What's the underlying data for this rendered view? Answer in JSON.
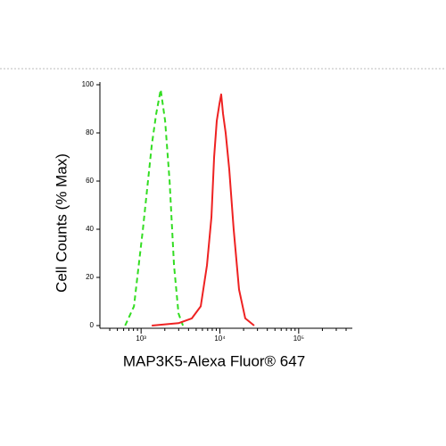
{
  "chart_data": {
    "type": "line",
    "xlabel": "MAP3K5-Alexa Fluor® 647",
    "ylabel": "Cell Counts (% Max)",
    "xscale": "log",
    "xlim": [
      300,
      480000
    ],
    "ylim": [
      0,
      100
    ],
    "xticks": [
      {
        "value": 1000,
        "label": "10³"
      },
      {
        "value": 10000,
        "label": "10⁴"
      },
      {
        "value": 100000,
        "label": "10⁵"
      }
    ],
    "xminorticks": [
      400,
      500,
      600,
      700,
      800,
      900,
      2000,
      3000,
      4000,
      5000,
      6000,
      7000,
      8000,
      9000,
      20000,
      30000,
      40000,
      50000,
      60000,
      70000,
      80000,
      90000,
      200000,
      300000,
      400000
    ],
    "yticks": [
      0,
      20,
      40,
      60,
      80,
      100
    ],
    "series": [
      {
        "color": "#33dd22",
        "dash": true,
        "x": [
          627,
          812,
          1054,
          1367,
          1556,
          1773,
          2018,
          2300,
          2617,
          2986,
          3398
        ],
        "values": [
          0,
          8,
          40,
          75,
          88,
          98,
          85,
          60,
          25,
          5,
          0
        ]
      },
      {
        "color": "#ee2222",
        "dash": false,
        "x": [
          1367,
          2986,
          4406,
          5715,
          6854,
          7812,
          8450,
          9129,
          9866,
          10390,
          10960,
          11840,
          13140,
          14960,
          17500,
          20990,
          27240
        ],
        "values": [
          0,
          1,
          3,
          8,
          25,
          45,
          70,
          85,
          92,
          96,
          88,
          80,
          65,
          40,
          15,
          3,
          0
        ]
      }
    ]
  }
}
